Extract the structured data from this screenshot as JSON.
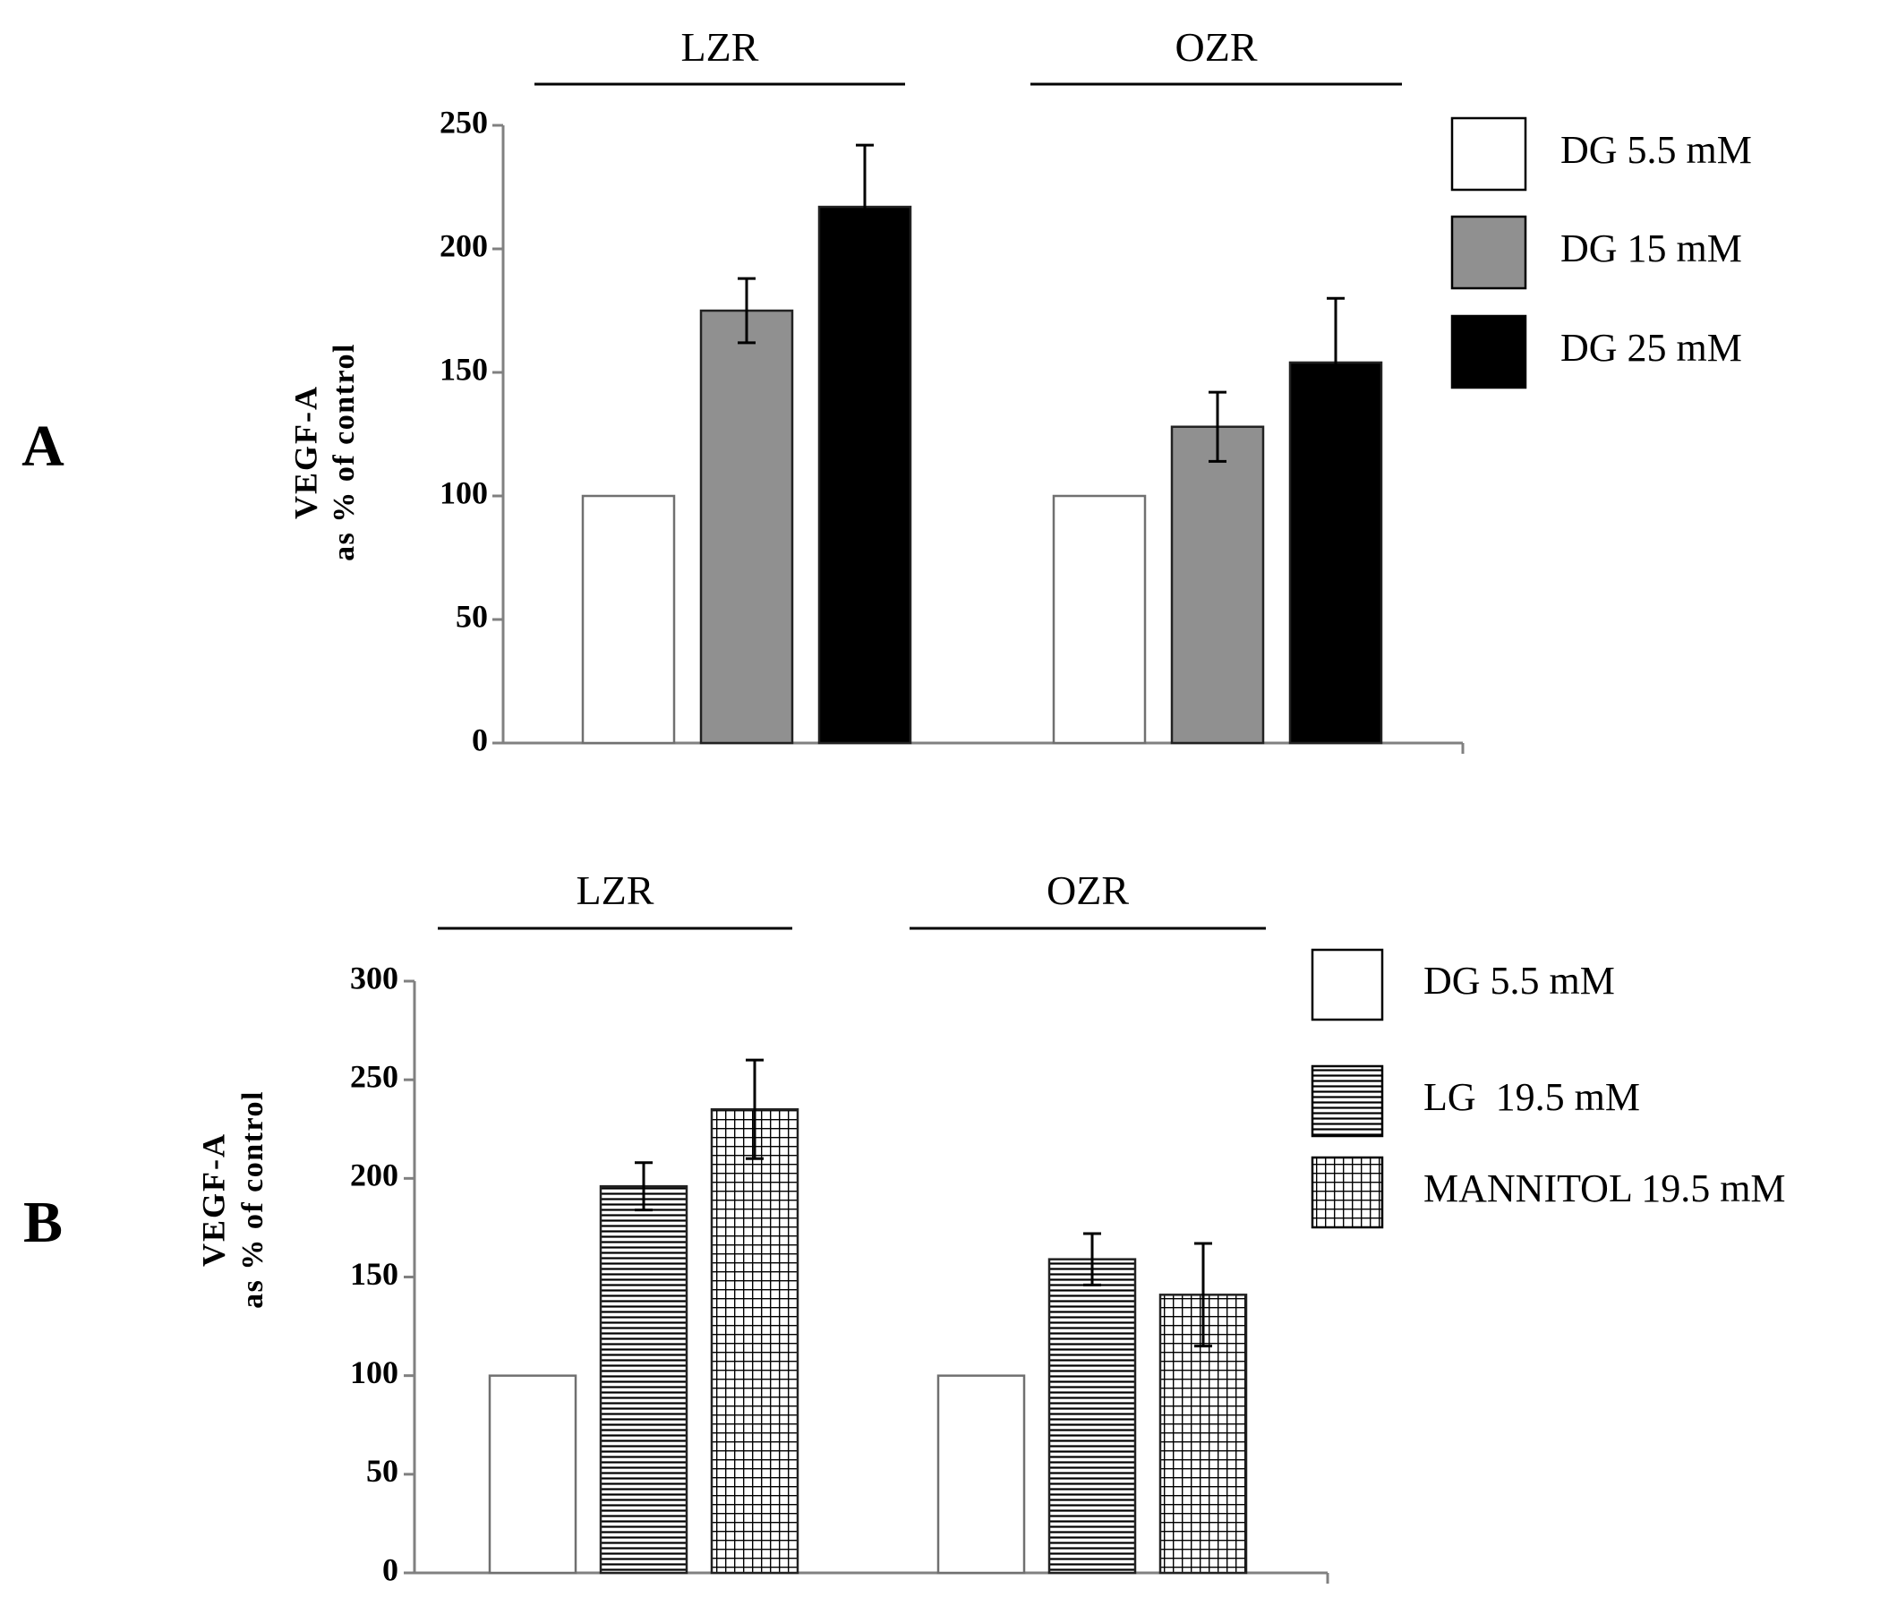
{
  "chart_data": [
    {
      "panel_label": "A",
      "type": "bar",
      "groups": [
        "LZR",
        "OZR"
      ],
      "ylabel_line1": "VEGF-A",
      "ylabel_line2": "as % of control",
      "ylim": [
        0,
        250
      ],
      "yticks": [
        0,
        50,
        100,
        150,
        200,
        250
      ],
      "series": [
        {
          "name": "DG 5.5 mM",
          "pattern": "white",
          "values": [
            100,
            100
          ],
          "errors": [
            null,
            null
          ]
        },
        {
          "name": "DG 15 mM",
          "pattern": "gray",
          "values": [
            175,
            128
          ],
          "errors": [
            13,
            14
          ]
        },
        {
          "name": "DG 25 mM",
          "pattern": "black",
          "values": [
            217,
            154
          ],
          "errors": [
            25,
            26
          ]
        }
      ]
    },
    {
      "panel_label": "B",
      "type": "bar",
      "groups": [
        "LZR",
        "OZR"
      ],
      "ylabel_line1": "VEGF-A",
      "ylabel_line2": "as % of control",
      "ylim": [
        0,
        300
      ],
      "yticks": [
        0,
        50,
        100,
        150,
        200,
        250,
        300
      ],
      "series": [
        {
          "name": "DG 5.5 mM",
          "pattern": "white",
          "values": [
            100,
            100
          ],
          "errors": [
            null,
            null
          ]
        },
        {
          "name": "LG  19.5 mM",
          "pattern": "hlines",
          "values": [
            196,
            159
          ],
          "errors": [
            12,
            13
          ]
        },
        {
          "name": "MANNITOL 19.5 mM",
          "pattern": "grid",
          "values": [
            235,
            141
          ],
          "errors": [
            25,
            26
          ]
        }
      ]
    }
  ],
  "colors": {
    "gray": "#909090",
    "black": "#000000",
    "white": "#ffffff",
    "axis": "#808080"
  }
}
